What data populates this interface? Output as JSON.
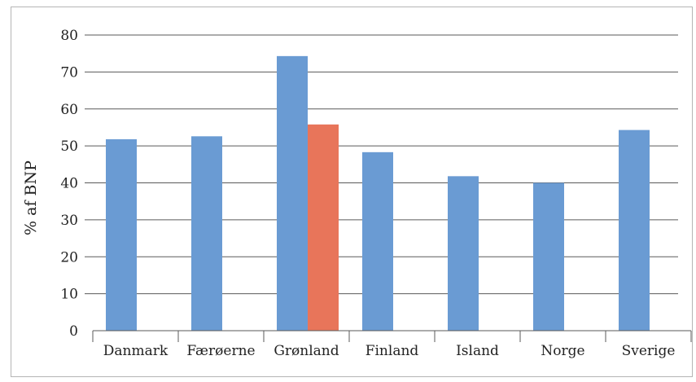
{
  "chart_data": {
    "type": "bar",
    "categories": [
      "Danmark",
      "Færøerne",
      "Grønland",
      "Finland",
      "Island",
      "Norge",
      "Sverige"
    ],
    "series": [
      {
        "values": [
          51.8,
          52.6,
          74.3,
          48.3,
          41.8,
          40.0,
          54.3
        ],
        "color": "#6a9bd3"
      },
      {
        "values": [
          null,
          null,
          55.8,
          null,
          null,
          null,
          null
        ],
        "color": "#e8755a"
      }
    ],
    "ylabel": "% af BNP",
    "ylim": [
      0,
      80
    ],
    "yticks": [
      0,
      10,
      20,
      30,
      40,
      50,
      60,
      70,
      80
    ],
    "grid": true,
    "legend": "none"
  }
}
